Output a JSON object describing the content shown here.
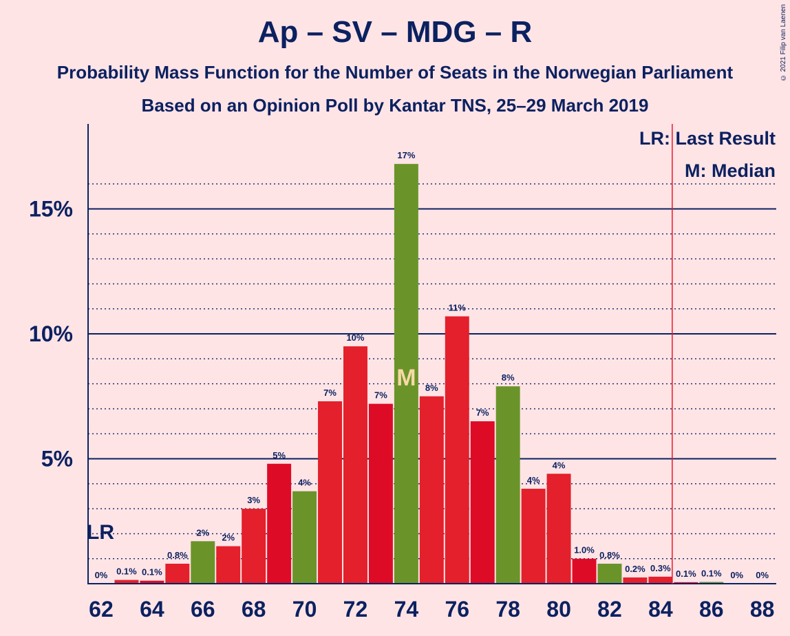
{
  "title": "Ap – SV – MDG – R",
  "subtitle_1": "Probability Mass Function for the Number of Seats in the Norwegian Parliament",
  "subtitle_2": "Based on an Opinion Poll by Kantar TNS, 25–29 March 2019",
  "copyright": "© 2021 Filip van Laenen",
  "legend": {
    "last_result": "LR: Last Result",
    "median": "M: Median"
  },
  "markers": {
    "last_result_label": "LR",
    "last_result_seats": 62,
    "median_label": "M",
    "median_seats": 74,
    "majority_line_seats": 84.5
  },
  "colors": {
    "background": "#ffe4e6",
    "text": "#0b2160",
    "bar_red_a": "#e3202b",
    "bar_red_b": "#de0b26",
    "bar_green": "#6a9429",
    "majority_line": "#e31b2a"
  },
  "chart_data": {
    "type": "bar",
    "x": [
      62,
      63,
      64,
      65,
      66,
      67,
      68,
      69,
      70,
      71,
      72,
      73,
      74,
      75,
      76,
      77,
      78,
      79,
      80,
      81,
      82,
      83,
      84,
      85,
      86,
      87,
      88
    ],
    "values": [
      0.0,
      0.15,
      0.12,
      0.8,
      1.7,
      1.5,
      3.0,
      4.8,
      3.7,
      7.3,
      9.5,
      7.2,
      16.8,
      7.5,
      10.7,
      6.5,
      7.9,
      3.8,
      4.4,
      1.0,
      0.8,
      0.25,
      0.28,
      0.06,
      0.07,
      0.0,
      0.0
    ],
    "data_labels": [
      "0%",
      "0.1%",
      "0.1%",
      "0.8%",
      "2%",
      "2%",
      "3%",
      "5%",
      "4%",
      "7%",
      "10%",
      "7%",
      "17%",
      "8%",
      "11%",
      "7%",
      "8%",
      "4%",
      "4%",
      "1.0%",
      "0.8%",
      "0.2%",
      "0.3%",
      "0.1%",
      "0.1%",
      "0%",
      "0%"
    ],
    "bar_colors": [
      "red_a",
      "red_a",
      "red_b",
      "red_a",
      "green",
      "red_a",
      "red_a",
      "red_b",
      "green",
      "red_a",
      "red_a",
      "red_b",
      "green",
      "red_a",
      "red_a",
      "red_b",
      "green",
      "red_a",
      "red_a",
      "red_b",
      "green",
      "red_a",
      "red_a",
      "red_b",
      "green",
      "red_a",
      "red_a"
    ],
    "x_ticks": [
      "62",
      "64",
      "66",
      "68",
      "70",
      "72",
      "74",
      "76",
      "78",
      "80",
      "82",
      "84",
      "86",
      "88"
    ],
    "y_ticks": [
      {
        "value": 5,
        "label": "5%"
      },
      {
        "value": 10,
        "label": "10%"
      },
      {
        "value": 15,
        "label": "15%"
      }
    ],
    "ylim": [
      0,
      18
    ],
    "xlabel": "",
    "ylabel": "",
    "grid": "dotted minor lines every 1%, solid at 5% steps",
    "legend_position": "top-right"
  }
}
